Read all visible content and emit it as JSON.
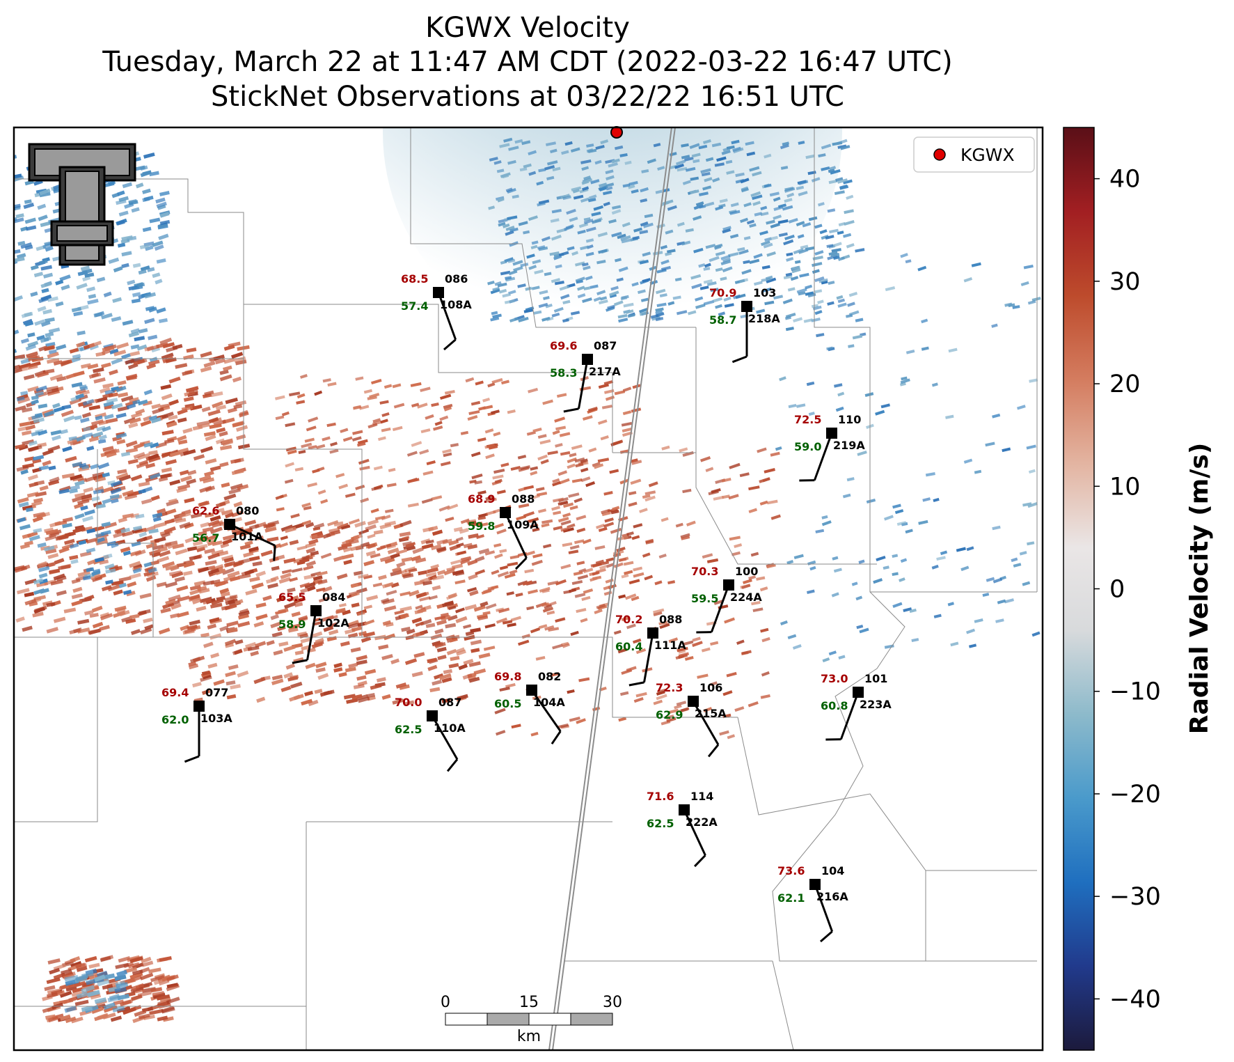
{
  "title": {
    "line1": "KGWX Velocity",
    "line2": "Tuesday, March 22 at 11:47 AM CDT (2022-03-22 16:47 UTC)",
    "line3": "StickNet Observations at 03/22/22 16:51 UTC"
  },
  "legend": {
    "label": "KGWX",
    "marker_color": "#e00000"
  },
  "logo": {
    "icon": "texas-tech-double-t-logo",
    "text": "T"
  },
  "colorbar": {
    "label": "Radial Velocity (m/s)",
    "range": [
      -45,
      45
    ],
    "ticks": [
      "40",
      "30",
      "20",
      "10",
      "0",
      "−10",
      "−20",
      "−30",
      "−40"
    ],
    "tick_values": [
      40,
      30,
      20,
      10,
      0,
      -10,
      -20,
      -30,
      -40
    ],
    "colors": [
      "#1c1a3c",
      "#213a8c",
      "#1f6fbf",
      "#4a9acb",
      "#8dbacb",
      "#d8dadc",
      "#eae6e6",
      "#e3b4a1",
      "#d47c5f",
      "#bd4b2c",
      "#a21f22",
      "#5a0f17"
    ]
  },
  "scalebar": {
    "ticks": [
      "0",
      "15",
      "30"
    ],
    "unit": "km"
  },
  "stations": [
    {
      "id": "108A",
      "temp": "68.5",
      "dew": "57.4",
      "dir": "086",
      "wind_from_deg": 160
    },
    {
      "id": "218A",
      "temp": "70.9",
      "dew": "58.7",
      "dir": "103",
      "wind_from_deg": 180
    },
    {
      "id": "217A",
      "temp": "69.6",
      "dew": "58.3",
      "dir": "087",
      "wind_from_deg": 190
    },
    {
      "id": "219A",
      "temp": "72.5",
      "dew": "59.0",
      "dir": "110",
      "wind_from_deg": 200
    },
    {
      "id": "101A",
      "temp": "62.6",
      "dew": "56.7",
      "dir": "080",
      "wind_from_deg": 115
    },
    {
      "id": "109A",
      "temp": "68.9",
      "dew": "59.8",
      "dir": "088",
      "wind_from_deg": 155
    },
    {
      "id": "224A",
      "temp": "70.3",
      "dew": "59.5",
      "dir": "100",
      "wind_from_deg": 200
    },
    {
      "id": "102A",
      "temp": "65.5",
      "dew": "58.9",
      "dir": "084",
      "wind_from_deg": 190
    },
    {
      "id": "111A",
      "temp": "70.2",
      "dew": "60.4",
      "dir": "088",
      "wind_from_deg": 190
    },
    {
      "id": "104A",
      "temp": "69.8",
      "dew": "60.5",
      "dir": "082",
      "wind_from_deg": 145
    },
    {
      "id": "103A",
      "temp": "69.4",
      "dew": "62.0",
      "dir": "077",
      "wind_from_deg": 180
    },
    {
      "id": "110A",
      "temp": "70.0",
      "dew": "62.5",
      "dir": "087",
      "wind_from_deg": 150
    },
    {
      "id": "215A",
      "temp": "72.3",
      "dew": "62.9",
      "dir": "106",
      "wind_from_deg": 150
    },
    {
      "id": "223A",
      "temp": "73.0",
      "dew": "60.8",
      "dir": "101",
      "wind_from_deg": 200
    },
    {
      "id": "222A",
      "temp": "71.6",
      "dew": "62.5",
      "dir": "114",
      "wind_from_deg": 155
    },
    {
      "id": "216A",
      "temp": "73.6",
      "dew": "62.1",
      "dir": "104",
      "wind_from_deg": 160
    }
  ]
}
